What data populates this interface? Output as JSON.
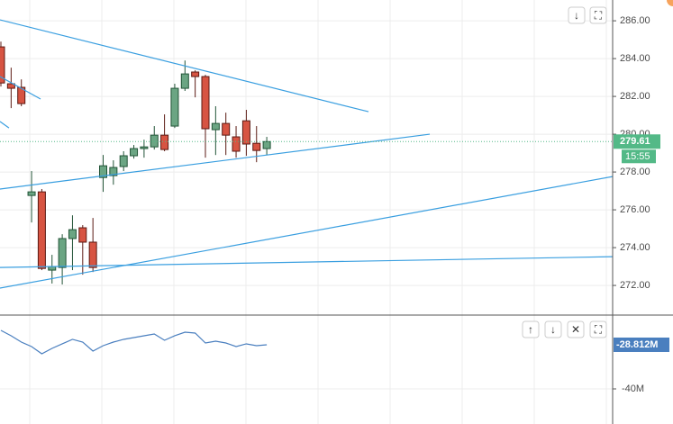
{
  "chart_data": {
    "type": "candlestick",
    "up_color": "#6ba583",
    "up_border": "#225437",
    "down_color": "#d75442",
    "down_border": "#5b1a13",
    "candles": [
      {
        "open": 284.62,
        "high": 284.9,
        "low": 282.52,
        "close": 282.71
      },
      {
        "open": 282.67,
        "high": 283.52,
        "low": 281.38,
        "close": 282.43
      },
      {
        "open": 282.48,
        "high": 282.9,
        "low": 281.48,
        "close": 281.62
      },
      {
        "open": 276.76,
        "high": 278.05,
        "low": 275.33,
        "close": 276.95
      },
      {
        "open": 276.95,
        "high": 277.1,
        "low": 272.81,
        "close": 272.9
      },
      {
        "open": 272.81,
        "high": 273.62,
        "low": 272.1,
        "close": 273.0
      },
      {
        "open": 272.95,
        "high": 274.71,
        "low": 272.05,
        "close": 274.48
      },
      {
        "open": 274.48,
        "high": 275.71,
        "low": 272.81,
        "close": 274.95
      },
      {
        "open": 275.05,
        "high": 275.19,
        "low": 272.57,
        "close": 274.29
      },
      {
        "open": 274.29,
        "high": 275.57,
        "low": 272.71,
        "close": 272.95
      },
      {
        "open": 277.71,
        "high": 278.9,
        "low": 276.95,
        "close": 278.33
      },
      {
        "open": 277.81,
        "high": 278.62,
        "low": 277.33,
        "close": 278.24
      },
      {
        "open": 278.29,
        "high": 279.1,
        "low": 278.05,
        "close": 278.86
      },
      {
        "open": 278.86,
        "high": 279.43,
        "low": 278.71,
        "close": 279.24
      },
      {
        "open": 279.24,
        "high": 279.71,
        "low": 278.76,
        "close": 279.33
      },
      {
        "open": 279.33,
        "high": 280.43,
        "low": 279.19,
        "close": 279.95
      },
      {
        "open": 279.95,
        "high": 281.05,
        "low": 279.1,
        "close": 279.19
      },
      {
        "open": 280.43,
        "high": 282.67,
        "low": 280.33,
        "close": 282.43
      },
      {
        "open": 282.43,
        "high": 283.9,
        "low": 282.29,
        "close": 283.19
      },
      {
        "open": 283.29,
        "high": 283.38,
        "low": 281.95,
        "close": 283.05
      },
      {
        "open": 283.05,
        "high": 283.14,
        "low": 278.76,
        "close": 280.29
      },
      {
        "open": 280.24,
        "high": 281.48,
        "low": 278.9,
        "close": 280.57
      },
      {
        "open": 280.57,
        "high": 281.14,
        "low": 278.9,
        "close": 279.95
      },
      {
        "open": 279.86,
        "high": 280.43,
        "low": 278.76,
        "close": 279.1
      },
      {
        "open": 280.71,
        "high": 281.29,
        "low": 278.86,
        "close": 279.48
      },
      {
        "open": 279.52,
        "high": 280.43,
        "low": 278.52,
        "close": 279.14
      },
      {
        "open": 279.24,
        "high": 279.86,
        "low": 278.9,
        "close": 279.61
      }
    ],
    "ylim": [
      270.67,
      287.1
    ],
    "yticks": [
      {
        "value": 272,
        "label": "272.00"
      },
      {
        "value": 274,
        "label": "274.00"
      },
      {
        "value": 276,
        "label": "276.00"
      },
      {
        "value": 278,
        "label": "278.00"
      },
      {
        "value": 280,
        "label": "280.00"
      },
      {
        "value": 282,
        "label": "282.00"
      },
      {
        "value": 284,
        "label": "284.00"
      },
      {
        "value": 286,
        "label": "286.00"
      }
    ],
    "last_price": {
      "value": 279.61,
      "label": "279.61"
    },
    "countdown": "15:55",
    "trend_lines": [
      {
        "x0": -0.09,
        "y0": 286.05,
        "x1": 35.95,
        "y1": 281.19
      },
      {
        "x0": -0.09,
        "y0": 277.1,
        "x1": 41.94,
        "y1": 280.0
      },
      {
        "x0": -0.09,
        "y0": 271.86,
        "x1": 59.82,
        "y1": 277.76
      },
      {
        "x0": -0.09,
        "y0": 272.95,
        "x1": 59.82,
        "y1": 273.52
      },
      {
        "x0": -0.09,
        "y0": 283.05,
        "x1": 3.88,
        "y1": 281.86
      },
      {
        "x0": -0.09,
        "y0": 280.67,
        "x1": 0.79,
        "y1": 280.33
      }
    ],
    "indicator": {
      "color": "#4a7fbf",
      "values": [
        -25.16,
        -26.53,
        -28.13,
        -29.27,
        -31.1,
        -29.73,
        -28.58,
        -27.44,
        -28.13,
        -30.41,
        -29.04,
        -28.13,
        -27.44,
        -26.99,
        -26.53,
        -26.07,
        -27.67,
        -26.53,
        -25.62,
        -25.84,
        -28.36,
        -27.9,
        -28.36,
        -29.27,
        -28.58,
        -29.04,
        -28.812
      ],
      "ylim": [
        -48.22,
        -21.28
      ],
      "yticks": [
        {
          "value": -40,
          "label": "-40M"
        }
      ],
      "last_label": "-28.812M"
    }
  }
}
